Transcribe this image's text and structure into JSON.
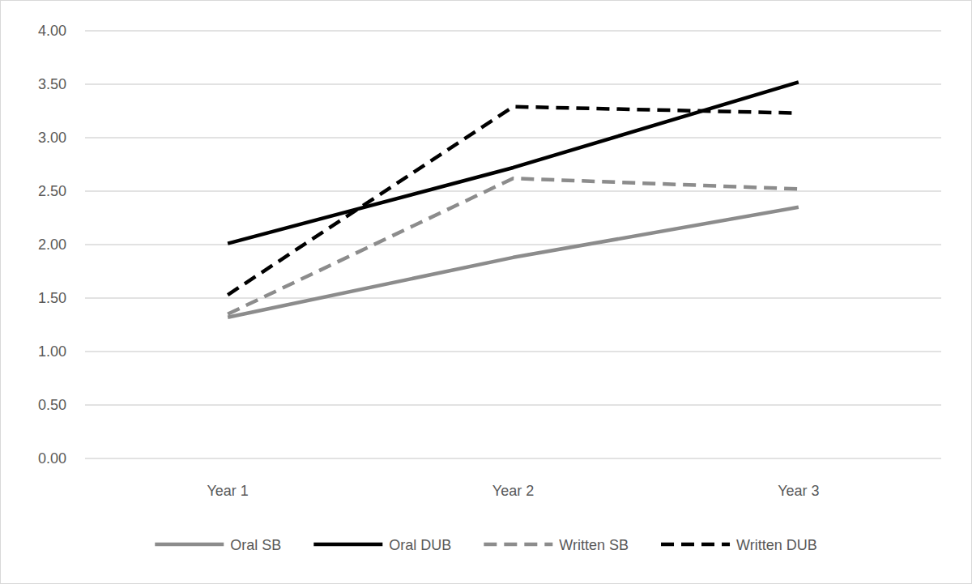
{
  "chart_data": {
    "type": "line",
    "categories": [
      "Year 1",
      "Year 2",
      "Year 3"
    ],
    "series": [
      {
        "name": "Oral SB",
        "color": "#8c8c8c",
        "line_style": "solid",
        "values": [
          1.32,
          1.88,
          2.35
        ]
      },
      {
        "name": "Oral DUB",
        "color": "#000000",
        "line_style": "solid",
        "values": [
          2.01,
          2.72,
          3.52
        ]
      },
      {
        "name": "Written SB",
        "color": "#8c8c8c",
        "line_style": "dashed",
        "values": [
          1.35,
          2.62,
          2.52
        ]
      },
      {
        "name": "Written DUB",
        "color": "#000000",
        "line_style": "dashed",
        "values": [
          1.53,
          3.29,
          3.23
        ]
      }
    ],
    "ylim": [
      0,
      4
    ],
    "yticks": [
      {
        "value": 0,
        "label": "0.00"
      },
      {
        "value": 0.5,
        "label": "0.50"
      },
      {
        "value": 1,
        "label": "1.00"
      },
      {
        "value": 1.5,
        "label": "1.50"
      },
      {
        "value": 2,
        "label": "2.00"
      },
      {
        "value": 2.5,
        "label": "2.50"
      },
      {
        "value": 3,
        "label": "3.00"
      },
      {
        "value": 3.5,
        "label": "3.50"
      },
      {
        "value": 4,
        "label": "4.00"
      }
    ],
    "grid": true,
    "legend": "bottom"
  }
}
